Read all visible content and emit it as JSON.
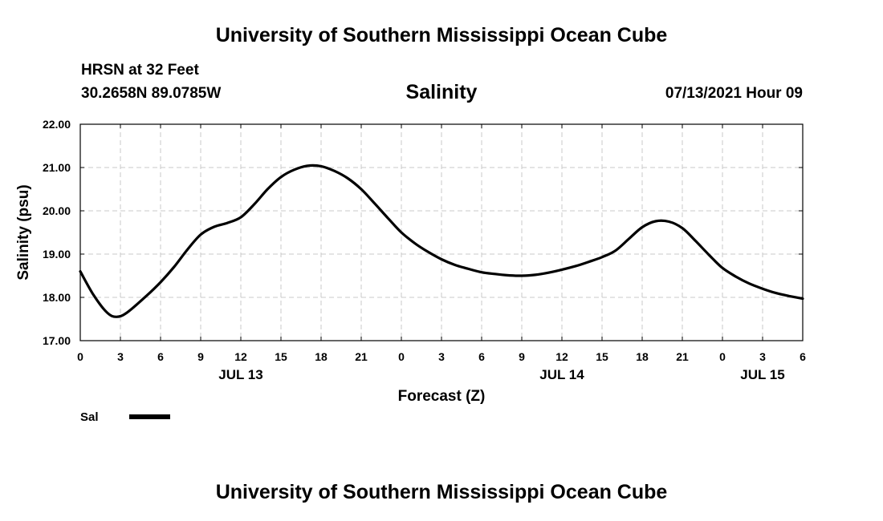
{
  "header": {
    "org_title": "University of Southern Mississippi Ocean Cube",
    "station": "HRSN at 32 Feet",
    "coords": "30.2658N  89.0785W",
    "timestamp": "07/13/2021 Hour 09"
  },
  "footer": {
    "org_title": "University of Southern Mississippi Ocean Cube"
  },
  "chart_data": {
    "type": "line",
    "title": "Salinity",
    "xlabel": "Forecast (Z)",
    "ylabel": "Salinity (psu)",
    "x_unit": "forecast hour from 00Z JUL 13",
    "xlim": [
      0,
      54
    ],
    "ylim": [
      17.0,
      22.0
    ],
    "x_ticks": [
      0,
      3,
      6,
      9,
      12,
      15,
      18,
      21,
      24,
      27,
      30,
      33,
      36,
      39,
      42,
      45,
      48,
      51,
      54
    ],
    "x_tick_labels": [
      "0",
      "3",
      "6",
      "9",
      "12",
      "15",
      "18",
      "21",
      "0",
      "3",
      "6",
      "9",
      "12",
      "15",
      "18",
      "21",
      "0",
      "3",
      "6"
    ],
    "date_labels": [
      {
        "x": 12,
        "text": "JUL 13"
      },
      {
        "x": 36,
        "text": "JUL 14"
      },
      {
        "x": 51,
        "text": "JUL 15"
      }
    ],
    "y_ticks": [
      17.0,
      18.0,
      19.0,
      20.0,
      21.0,
      22.0
    ],
    "y_tick_labels": [
      "17.00",
      "18.00",
      "19.00",
      "20.00",
      "21.00",
      "22.00"
    ],
    "grid": true,
    "legend": {
      "position": "bottom-left",
      "entries": [
        {
          "name": "Sal",
          "color": "#000000"
        }
      ]
    },
    "series": [
      {
        "name": "Sal",
        "color": "#000000",
        "x": [
          0,
          1,
          2,
          2.7,
          3.5,
          5,
          6,
          7,
          8,
          9,
          10,
          11,
          12,
          13,
          14,
          15,
          16,
          17,
          18,
          19,
          20,
          21,
          22,
          23,
          24,
          25,
          26,
          27,
          28,
          29,
          30,
          31,
          32,
          33,
          34,
          35,
          36,
          37,
          38,
          39,
          40,
          41,
          42,
          43,
          44,
          45,
          46,
          47,
          48,
          49,
          50,
          51,
          52,
          53,
          54
        ],
        "values": [
          18.6,
          18.05,
          17.65,
          17.55,
          17.65,
          18.05,
          18.35,
          18.7,
          19.1,
          19.45,
          19.63,
          19.72,
          19.85,
          20.15,
          20.5,
          20.78,
          20.95,
          21.04,
          21.03,
          20.92,
          20.75,
          20.5,
          20.17,
          19.83,
          19.5,
          19.25,
          19.05,
          18.88,
          18.75,
          18.66,
          18.58,
          18.54,
          18.51,
          18.5,
          18.52,
          18.57,
          18.64,
          18.72,
          18.82,
          18.93,
          19.08,
          19.35,
          19.62,
          19.76,
          19.75,
          19.6,
          19.3,
          18.98,
          18.68,
          18.48,
          18.32,
          18.2,
          18.1,
          18.03,
          17.97
        ]
      }
    ]
  }
}
